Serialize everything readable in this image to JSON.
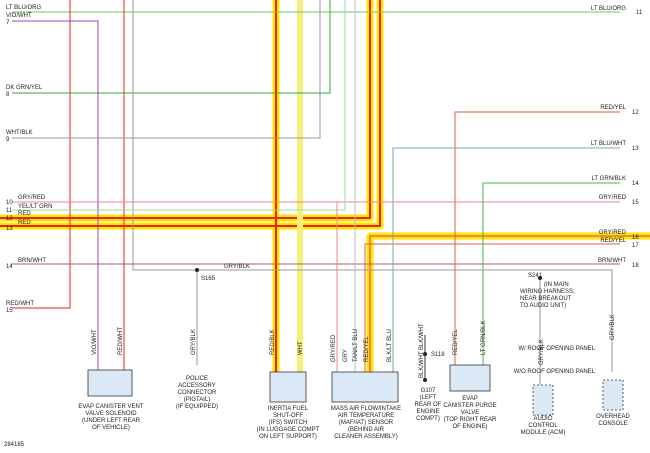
{
  "left_rows": [
    {
      "label": "LT BLU/ORG"
    },
    {
      "label": "VIO/WHT",
      "num": "7"
    },
    {
      "label": "DK GRN/YEL",
      "num": "8"
    },
    {
      "label": "WHT/BLK",
      "num": "9"
    },
    {
      "label": "GRY/RED",
      "num": "10"
    },
    {
      "label": "YEL/LT GRN",
      "num": "11"
    },
    {
      "label": "RED",
      "num": "12"
    },
    {
      "label": "RED",
      "num": "13"
    },
    {
      "label": "BRN/WHT",
      "num": "14"
    },
    {
      "label": "RED/WHT",
      "num": "15"
    }
  ],
  "right_rows": [
    {
      "label": "LT BLU/ORG",
      "num": "11"
    },
    {
      "label": "RED/YEL",
      "num": "12"
    },
    {
      "label": "LT BLU/WHT",
      "num": "13"
    },
    {
      "label": "LT GRN/BLK",
      "num": "14"
    },
    {
      "label": "GRY/RED",
      "num": "15"
    },
    {
      "label": "GRY/RED",
      "num": "16"
    },
    {
      "label": "RED/YEL",
      "num": "17"
    },
    {
      "label": "BRN/WHT",
      "num": "18"
    }
  ],
  "splices": {
    "gry_blk": "GRY/BLK",
    "s165": "S165",
    "s241": "S241",
    "s241_note": [
      "(IN MAIN",
      "WIRING HARNESS,",
      "NEAR BREAKOUT",
      "TO AUDIO UNIT)"
    ],
    "s118": "S118",
    "g107": [
      "G107",
      "(LEFT",
      "REAR OF",
      "ENGINE",
      "COMPT)"
    ]
  },
  "wire_labels": [
    "VIO/WHT",
    "RED/WHT",
    "GRY/BLK",
    "RED/BLK",
    "WHT",
    "GRY/RED",
    "GRY",
    "TAN/LT BLU",
    "RED/YEL",
    "BLK/LT BLU",
    "BLK/WHT",
    "BLK/WHT",
    "RED/YEL",
    "LT GRN/BLK",
    "GRY/BLK",
    "GRY/BLK"
  ],
  "options": [
    "W/ ROOF OPENING PANEL",
    "W/O ROOF OPENING PANEL"
  ],
  "components": [
    [
      "EVAP CANISTER VENT",
      "VALVE SOLENOID",
      "(UNDER LEFT REAR",
      "OF VEHICLE)"
    ],
    [
      "POLICE",
      "ACCESSORY",
      "CONNECTOR",
      "(PIGTAIL)",
      "(IF EQUIPPED)"
    ],
    [
      "INERTIA FUEL",
      "SHUT-OFF",
      "(IFS) SWITCH",
      "(IN LUGGAGE COMPT",
      "ON LEFT SUPPORT)"
    ],
    [
      "MASS AIR FLOW/INTAKE",
      "AIR TEMPERATURE",
      "(MAF/IAT) SENSOR",
      "(BEHIND AIR",
      "CLEANER ASSEMBLY)"
    ],
    [
      "EVAP",
      "CANISTER PURGE",
      "VALVE",
      "(TOP RIGHT REAR",
      "OF ENGINE)"
    ],
    [
      "AUDIO",
      "CONTROL",
      "MODULE (ACM)"
    ],
    [
      "OVERHEAD",
      "CONSOLE"
    ]
  ],
  "figure_id": "284185"
}
